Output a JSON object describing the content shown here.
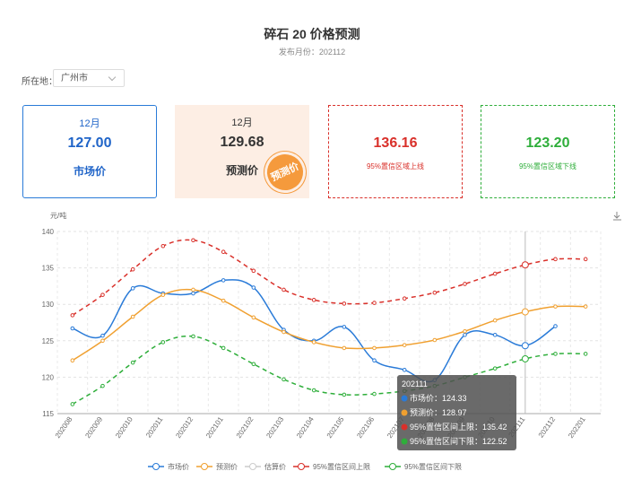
{
  "header": {
    "title": "碎石 20 价格预测",
    "subtitle": "发布月份：202112"
  },
  "filter": {
    "label": "所在地：",
    "value": "广州市"
  },
  "cards": [
    {
      "month": "12月",
      "value": "127.00",
      "label": "市场价"
    },
    {
      "month": "12月",
      "value": "129.68",
      "label": "预测价",
      "stamp": "预测价"
    },
    {
      "value": "136.16",
      "label": "95%置信区域上线"
    },
    {
      "value": "123.20",
      "label": "95%置信区域下线"
    }
  ],
  "chart_data": {
    "type": "line",
    "y_label": "元/吨",
    "categories": [
      "202008",
      "202009",
      "202010",
      "202011",
      "202012",
      "202101",
      "202102",
      "202103",
      "202104",
      "202105",
      "202106",
      "202107",
      "202108",
      "202109",
      "202110",
      "202111",
      "202112",
      "202201"
    ],
    "ylim": [
      115,
      140
    ],
    "yticks": [
      115,
      120,
      125,
      130,
      135,
      140
    ],
    "grid": true,
    "series": [
      {
        "name": "市场价",
        "color": "#2a7bd8",
        "dashed": false,
        "values": [
          126.7,
          125.7,
          132.2,
          131.5,
          131.5,
          133.3,
          132.3,
          126.5,
          125,
          126.9,
          122.3,
          121,
          119.6,
          125.8,
          125.8,
          124.33,
          127,
          null
        ]
      },
      {
        "name": "预测价",
        "color": "#f0a030",
        "dashed": false,
        "values": [
          122.3,
          125,
          128.3,
          131.3,
          132,
          130.5,
          128.2,
          126.2,
          124.8,
          124,
          124,
          124.4,
          125.1,
          126.3,
          127.8,
          128.97,
          129.7,
          129.7
        ]
      },
      {
        "name": "估算价",
        "color": "#cccccc",
        "dashed": false,
        "values": [
          null,
          null,
          null,
          null,
          null,
          null,
          null,
          null,
          null,
          null,
          null,
          null,
          null,
          null,
          null,
          null,
          null,
          null
        ]
      },
      {
        "name": "95%置信区间上限",
        "color": "#d9302a",
        "dashed": true,
        "values": [
          128.5,
          131.3,
          134.8,
          138,
          138.8,
          137.2,
          134.6,
          132,
          130.6,
          130.1,
          130.2,
          130.8,
          131.6,
          132.8,
          134.2,
          135.42,
          136.2,
          136.2
        ]
      },
      {
        "name": "95%置信区间下限",
        "color": "#2eae3a",
        "dashed": true,
        "values": [
          116.3,
          118.8,
          122,
          124.8,
          125.6,
          124,
          121.8,
          119.7,
          118.2,
          117.6,
          117.7,
          118.1,
          118.8,
          120,
          121.2,
          122.52,
          123.2,
          123.2
        ]
      }
    ],
    "tooltip": {
      "index": 15,
      "title": "202111",
      "lines": [
        {
          "text": "市场价：124.33",
          "color": "#2a7bd8"
        },
        {
          "text": "预测价：128.97",
          "color": "#f0a030"
        },
        {
          "text": "95%置信区间上限：135.42",
          "color": "#d9302a"
        },
        {
          "text": "95%置信区间下限：122.52",
          "color": "#2eae3a"
        }
      ]
    }
  }
}
